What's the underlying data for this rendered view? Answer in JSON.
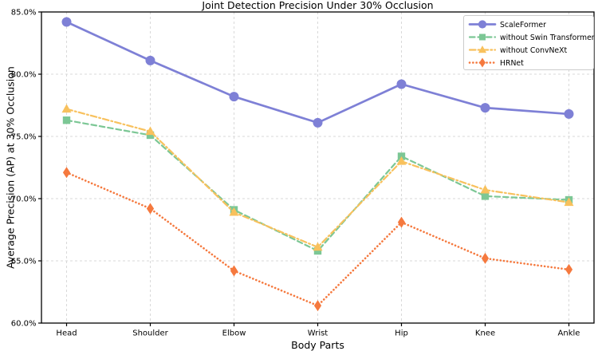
{
  "chart_data": {
    "type": "line",
    "title": "Joint Detection Precision Under 30% Occlusion",
    "xlabel": "Body Parts",
    "ylabel": "Average Precision (AP) at 30% Occlusion",
    "categories": [
      "Head",
      "Shoulder",
      "Elbow",
      "Wrist",
      "Hip",
      "Knee",
      "Ankle"
    ],
    "ylim": [
      60,
      85
    ],
    "yticks": [
      60,
      65,
      70,
      75,
      80,
      85
    ],
    "ytick_labels": [
      "60.0%",
      "65.0%",
      "70.0%",
      "75.0%",
      "80.0%",
      "85.0%"
    ],
    "grid": true,
    "legend_position": "upper right",
    "colors": {
      "grid": "#d9d9d9",
      "spine": "#000000",
      "text": "#000000",
      "legend_border": "#cccccc"
    },
    "series": [
      {
        "name": "ScaleFormer",
        "color": "#7e80d6",
        "marker": "circle",
        "linestyle": "solid",
        "values": [
          84.2,
          81.1,
          78.2,
          76.1,
          79.2,
          77.3,
          76.8
        ]
      },
      {
        "name": "without Swin Transformer",
        "color": "#7cc795",
        "marker": "square",
        "linestyle": "dashed",
        "values": [
          76.3,
          75.1,
          69.1,
          65.8,
          73.4,
          70.2,
          69.9
        ]
      },
      {
        "name": "without ConvNeXt",
        "color": "#f8c15d",
        "marker": "triangle",
        "linestyle": "dashdot",
        "values": [
          77.2,
          75.4,
          68.9,
          66.1,
          73.0,
          70.7,
          69.7
        ]
      },
      {
        "name": "HRNet",
        "color": "#f5793e",
        "marker": "diamond",
        "linestyle": "dotted",
        "values": [
          72.1,
          69.2,
          64.2,
          61.4,
          68.1,
          65.2,
          64.3
        ]
      }
    ]
  }
}
